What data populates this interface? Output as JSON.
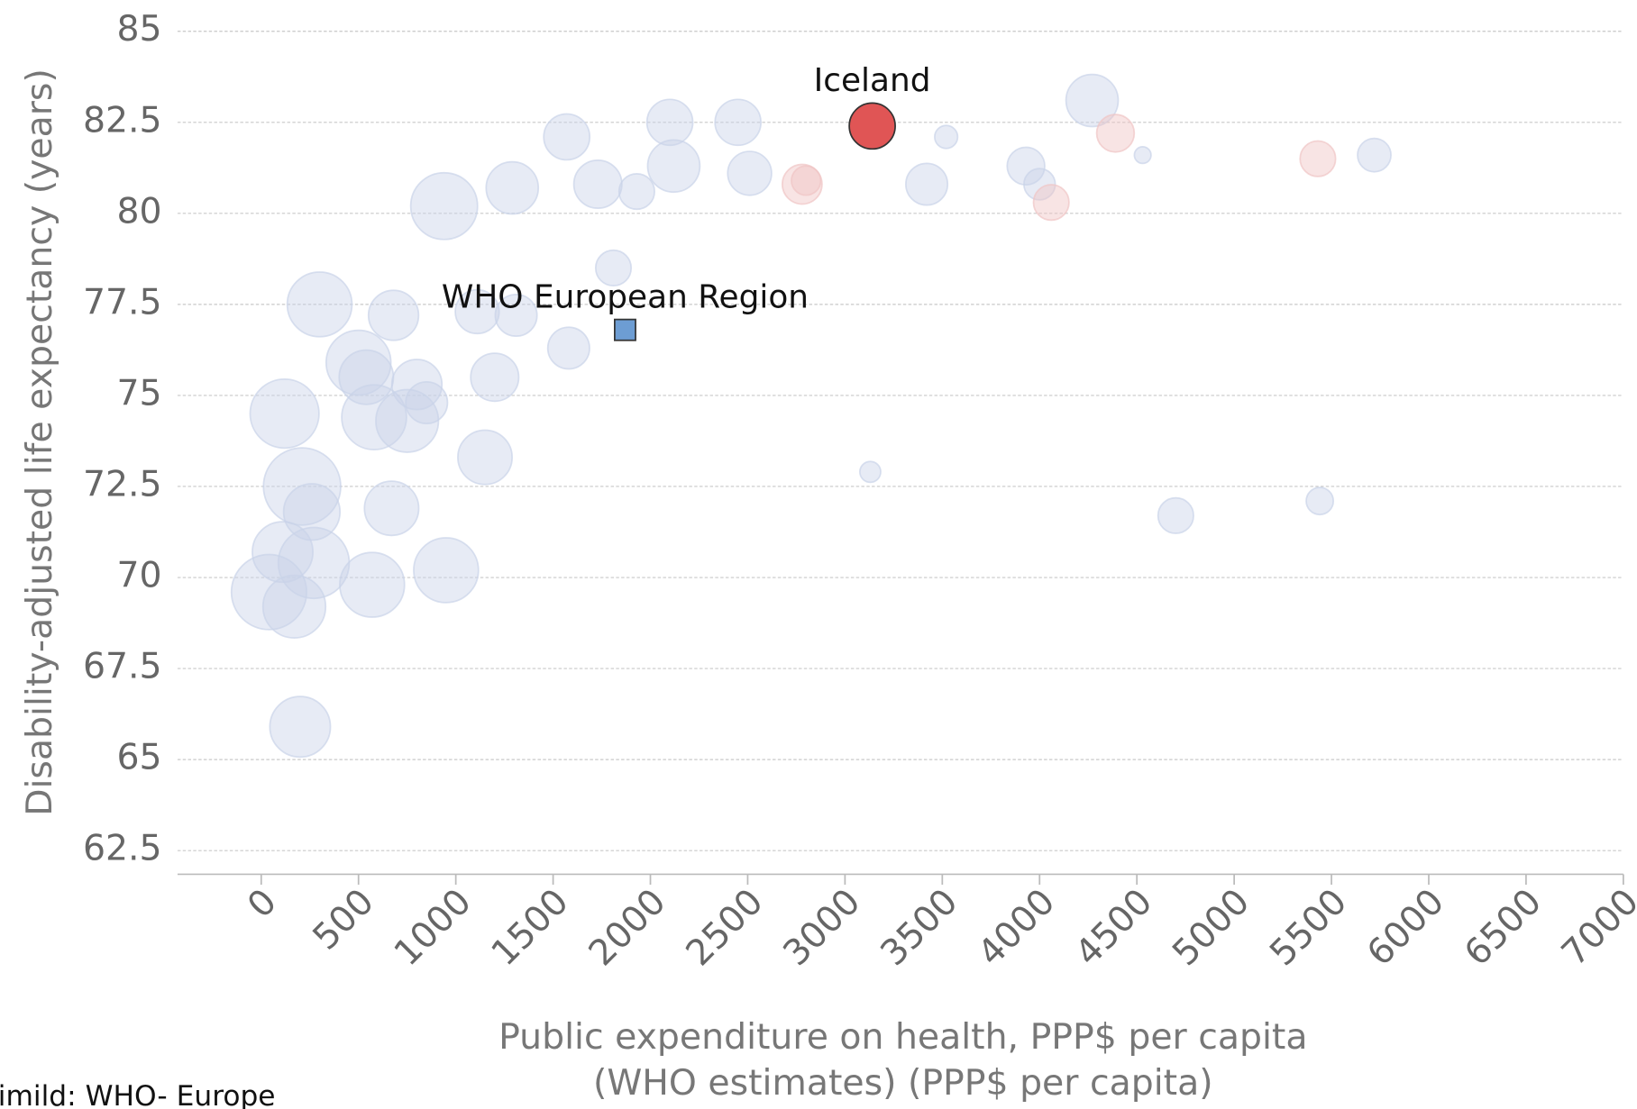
{
  "chart_data": {
    "type": "bubble",
    "x_label": "Public expenditure on health, PPP$ per capita",
    "x_label_2": "(WHO estimates) (PPP$ per capita)",
    "y_label": "Disability-adjusted life expectancy (years)",
    "source": "imild: WHO- Europe",
    "xlim": [
      -430,
      7000
    ],
    "xticks": [
      0,
      500,
      1000,
      1500,
      2000,
      2500,
      3000,
      3500,
      4000,
      4500,
      5000,
      5500,
      6000,
      6500,
      7000
    ],
    "ylim": [
      61.85,
      85
    ],
    "yticks": [
      62.5,
      65,
      67.5,
      70,
      72.5,
      75,
      77.5,
      80,
      82.5,
      85
    ],
    "grid": true,
    "series": [
      {
        "color": "#c9d3e8",
        "x": [
          940,
          1290,
          1570,
          1730,
          1930,
          2100,
          2120,
          2450,
          2510,
          3420,
          3520,
          3930,
          4000,
          4270,
          4530,
          5720,
          1810,
          300,
          680,
          1110,
          1310,
          1580,
          500,
          540,
          800,
          1200,
          850,
          120,
          580,
          750,
          1150,
          3130,
          210,
          670,
          260,
          4700,
          5440,
          110,
          270,
          950,
          570,
          40,
          170,
          200
        ],
        "values": [
          80.2,
          80.7,
          82.1,
          80.8,
          80.6,
          82.5,
          81.3,
          82.5,
          81.1,
          80.8,
          82.1,
          81.3,
          80.8,
          83.1,
          81.6,
          81.6,
          78.5,
          77.5,
          77.2,
          77.3,
          77.2,
          76.3,
          75.9,
          75.5,
          75.3,
          75.5,
          74.8,
          74.5,
          74.4,
          74.3,
          73.3,
          72.9,
          72.5,
          71.9,
          71.8,
          71.7,
          72.1,
          70.7,
          70.4,
          70.2,
          69.8,
          69.6,
          69.2,
          65.9
        ],
        "sizes": [
          32,
          25,
          22,
          23,
          17,
          22,
          25,
          22,
          21,
          20,
          11,
          18,
          15,
          25,
          8,
          16,
          17,
          31,
          24,
          21,
          20,
          20,
          31,
          26,
          24,
          23,
          20,
          33,
          31,
          30,
          26,
          10,
          37,
          26,
          27,
          17,
          13,
          29,
          34,
          31,
          31,
          36,
          30,
          29
        ]
      },
      {
        "color": "#f0c4c4",
        "x": [
          2780,
          2800,
          4060,
          4390,
          5430
        ],
        "values": [
          80.8,
          80.9,
          80.3,
          82.2,
          81.5
        ],
        "sizes": [
          19,
          14,
          17,
          18,
          17
        ]
      },
      {
        "name": "WHO European Region",
        "color": "#6d9dd3",
        "marker": "square",
        "x": [
          1870
        ],
        "values": [
          76.8
        ],
        "sizes": [
          10
        ]
      },
      {
        "name": "Iceland",
        "color": "#e05555",
        "x": [
          3140
        ],
        "values": [
          82.4
        ],
        "sizes": [
          22
        ]
      }
    ]
  }
}
